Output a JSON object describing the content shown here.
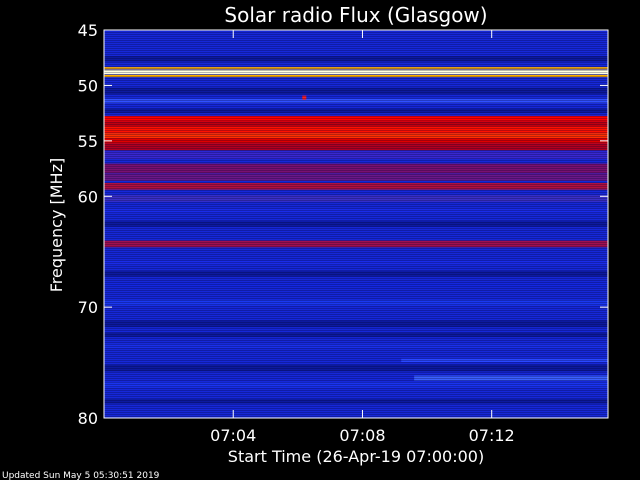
{
  "chart_data": {
    "type": "heatmap",
    "title": "Solar radio Flux (Glasgow)",
    "xlabel": "Start Time (26-Apr-19 07:00:00)",
    "ylabel": "Frequency [MHz]",
    "xlim_minutes": [
      0,
      15.6
    ],
    "ylim": [
      45,
      80
    ],
    "x_ticks": [
      {
        "minute": 4,
        "label": "07:04"
      },
      {
        "minute": 8,
        "label": "07:08"
      },
      {
        "minute": 12,
        "label": "07:12"
      }
    ],
    "y_ticks": [
      {
        "value": 45,
        "label": "45"
      },
      {
        "value": 50,
        "label": "50"
      },
      {
        "value": 55,
        "label": "55"
      },
      {
        "value": 60,
        "label": "60"
      },
      {
        "value": 70,
        "label": "70"
      },
      {
        "value": 80,
        "label": "80"
      }
    ],
    "intensity_bands_mhz": [
      {
        "freq": 48.8,
        "width": 0.4,
        "color": "#ffffe0"
      },
      {
        "freq": 48.45,
        "width": 0.2,
        "color": "#ffb000"
      },
      {
        "freq": 49.15,
        "width": 0.2,
        "color": "#ffb000"
      },
      {
        "freq": 51.4,
        "width": 0.4,
        "color": "#3050ff"
      },
      {
        "freq": 53.0,
        "width": 0.5,
        "color": "#ff0000"
      },
      {
        "freq": 53.5,
        "width": 0.5,
        "color": "#c00010"
      },
      {
        "freq": 54.0,
        "width": 0.6,
        "color": "#ff1000"
      },
      {
        "freq": 54.55,
        "width": 0.5,
        "color": "#ff3000"
      },
      {
        "freq": 55.0,
        "width": 0.5,
        "color": "#e00000"
      },
      {
        "freq": 55.55,
        "width": 0.6,
        "color": "#b00020"
      },
      {
        "freq": 56.3,
        "width": 0.7,
        "color": "#3828d0"
      },
      {
        "freq": 57.5,
        "width": 0.9,
        "color": "#7a1070"
      },
      {
        "freq": 58.3,
        "width": 0.6,
        "color": "#6a1888"
      },
      {
        "freq": 59.1,
        "width": 0.6,
        "color": "#b01040"
      },
      {
        "freq": 60.2,
        "width": 0.6,
        "color": "#3a30c8"
      },
      {
        "freq": 61.3,
        "width": 0.4,
        "color": "#1a2ce8"
      },
      {
        "freq": 64.3,
        "width": 0.6,
        "color": "#a01050"
      },
      {
        "freq": 66.0,
        "width": 0.4,
        "color": "#1a2ce8"
      },
      {
        "freq": 68.0,
        "width": 0.4,
        "color": "#1428e0"
      },
      {
        "freq": 69.6,
        "width": 0.5,
        "color": "#1a38f0"
      },
      {
        "freq": 73.5,
        "width": 0.4,
        "color": "#1a30e8"
      },
      {
        "freq": 77.0,
        "width": 0.5,
        "color": "#1a34f0"
      }
    ],
    "dark_bands_mhz": [
      {
        "freq": 47.6,
        "width": 0.5
      },
      {
        "freq": 50.5,
        "width": 0.6
      },
      {
        "freq": 52.3,
        "width": 0.4
      },
      {
        "freq": 62.5,
        "width": 0.5
      },
      {
        "freq": 67.0,
        "width": 0.5
      },
      {
        "freq": 71.5,
        "width": 0.6
      },
      {
        "freq": 72.5,
        "width": 0.4
      },
      {
        "freq": 75.5,
        "width": 0.6
      },
      {
        "freq": 78.5,
        "width": 0.4
      }
    ],
    "late_segments": [
      {
        "start_minute": 9.2,
        "end_minute": 15.6,
        "freq": 74.8,
        "width": 0.3,
        "color": "#2a48ff"
      },
      {
        "start_minute": 9.6,
        "end_minute": 15.6,
        "freq": 76.4,
        "width": 0.45,
        "color": "#3a60ff"
      }
    ],
    "point_events": [
      {
        "minute": 6.2,
        "freq": 51.1,
        "color": "#ff2020"
      }
    ]
  },
  "footer": {
    "updated_text": "Updated Sun May  5 05:30:51 2019"
  },
  "colors": {
    "background": "#000000",
    "plot_base": "#1628d8",
    "axis": "#ffffff"
  }
}
